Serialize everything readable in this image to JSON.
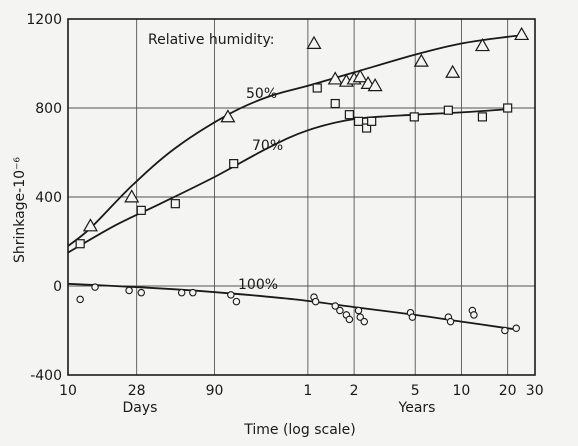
{
  "chart_data": {
    "type": "scatter",
    "xlabel": "Time (log scale)",
    "ylabel": "Shrinkage-10⁻⁶",
    "x_scale": "log",
    "x_unit": "days",
    "xlim": [
      10,
      11000
    ],
    "ylim": [
      -400,
      1200
    ],
    "y_ticks": [
      -400,
      0,
      400,
      800,
      1200
    ],
    "x_ticks": [
      {
        "label": "10",
        "days": 10
      },
      {
        "label": "28",
        "days": 28
      },
      {
        "label": "90",
        "days": 90
      },
      {
        "label": "1",
        "days": 365
      },
      {
        "label": "2",
        "days": 730
      },
      {
        "label": "5",
        "days": 1825
      },
      {
        "label": "10",
        "days": 3650
      },
      {
        "label": "20",
        "days": 7300
      },
      {
        "label": "30",
        "days": 10950
      }
    ],
    "x_grid_days": [
      10,
      28,
      90,
      365,
      730,
      1825,
      3650,
      7300
    ],
    "y_grid": [
      0,
      400,
      800
    ],
    "unit_labels": {
      "days": "Days",
      "years": "Years"
    },
    "annotations": {
      "legend_title": "Relative humidity:",
      "rh_50": "50%",
      "rh_70": "70%",
      "rh_100": "100%"
    },
    "series": [
      {
        "name": "50%",
        "marker": "triangle",
        "points": [
          [
            14,
            270
          ],
          [
            26,
            400
          ],
          [
            110,
            760
          ],
          [
            400,
            1090
          ],
          [
            550,
            930
          ],
          [
            650,
            920
          ],
          [
            730,
            930
          ],
          [
            800,
            940
          ],
          [
            900,
            910
          ],
          [
            1000,
            900
          ],
          [
            2000,
            1010
          ],
          [
            3200,
            960
          ],
          [
            5000,
            1080
          ],
          [
            9000,
            1130
          ]
        ],
        "curve": [
          [
            10,
            180
          ],
          [
            14,
            260
          ],
          [
            26,
            450
          ],
          [
            50,
            620
          ],
          [
            110,
            770
          ],
          [
            200,
            850
          ],
          [
            365,
            900
          ],
          [
            730,
            960
          ],
          [
            1825,
            1040
          ],
          [
            3650,
            1090
          ],
          [
            7300,
            1120
          ],
          [
            9000,
            1125
          ]
        ]
      },
      {
        "name": "70%",
        "marker": "square",
        "points": [
          [
            12,
            190
          ],
          [
            30,
            340
          ],
          [
            50,
            370
          ],
          [
            120,
            550
          ],
          [
            420,
            890
          ],
          [
            550,
            820
          ],
          [
            680,
            770
          ],
          [
            780,
            740
          ],
          [
            880,
            710
          ],
          [
            950,
            740
          ],
          [
            1800,
            760
          ],
          [
            3000,
            790
          ],
          [
            5000,
            760
          ],
          [
            7300,
            800
          ]
        ],
        "curve": [
          [
            10,
            150
          ],
          [
            20,
            270
          ],
          [
            40,
            370
          ],
          [
            90,
            490
          ],
          [
            200,
            620
          ],
          [
            365,
            700
          ],
          [
            730,
            750
          ],
          [
            1825,
            770
          ],
          [
            3650,
            780
          ],
          [
            7300,
            795
          ]
        ]
      },
      {
        "name": "100%",
        "marker": "circle",
        "points": [
          [
            12,
            -60
          ],
          [
            15,
            -5
          ],
          [
            25,
            -20
          ],
          [
            30,
            -30
          ],
          [
            55,
            -30
          ],
          [
            65,
            -30
          ],
          [
            115,
            -40
          ],
          [
            125,
            -70
          ],
          [
            400,
            -50
          ],
          [
            410,
            -70
          ],
          [
            550,
            -90
          ],
          [
            590,
            -110
          ],
          [
            650,
            -130
          ],
          [
            680,
            -150
          ],
          [
            780,
            -110
          ],
          [
            800,
            -140
          ],
          [
            850,
            -160
          ],
          [
            1700,
            -120
          ],
          [
            1750,
            -140
          ],
          [
            3000,
            -140
          ],
          [
            3100,
            -160
          ],
          [
            4300,
            -110
          ],
          [
            4400,
            -130
          ],
          [
            7000,
            -200
          ],
          [
            8300,
            -190
          ]
        ],
        "curve": [
          [
            10,
            10
          ],
          [
            20,
            0
          ],
          [
            50,
            -15
          ],
          [
            100,
            -30
          ],
          [
            300,
            -60
          ],
          [
            730,
            -95
          ],
          [
            1825,
            -130
          ],
          [
            3650,
            -160
          ],
          [
            7300,
            -190
          ],
          [
            8300,
            -195
          ]
        ]
      }
    ]
  }
}
